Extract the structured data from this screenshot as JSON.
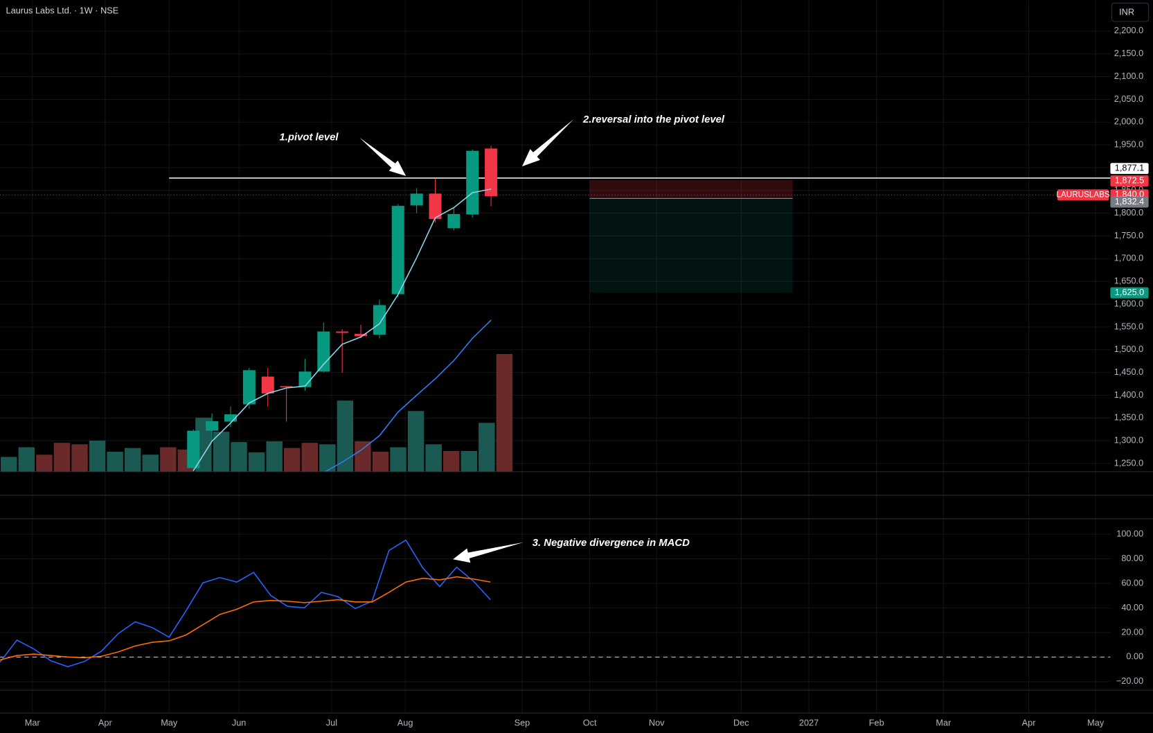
{
  "header": {
    "title": "Laurus Labs Ltd. · 1W · NSE",
    "currency": "INR"
  },
  "time_axis": {
    "labels": [
      "Mar",
      "Apr",
      "May",
      "Jun",
      "Jul",
      "Aug",
      "Sep",
      "Oct",
      "Nov",
      "Dec",
      "2027",
      "Feb",
      "Mar",
      "Apr",
      "May"
    ]
  },
  "chart_data": [
    {
      "type": "candlestick",
      "open": [
        1240,
        1322,
        1342,
        1380,
        1441,
        1420,
        1418,
        1452,
        1540,
        1535,
        1533,
        1622,
        1817,
        1843,
        1767,
        1797,
        1942
      ],
      "high": [
        1325,
        1360,
        1375,
        1460,
        1460,
        1420,
        1480,
        1560,
        1545,
        1555,
        1610,
        1820,
        1855,
        1875,
        1812,
        1940,
        1948
      ],
      "low": [
        1230,
        1300,
        1330,
        1370,
        1375,
        1342,
        1410,
        1450,
        1449,
        1525,
        1525,
        1615,
        1800,
        1780,
        1762,
        1790,
        1815
      ],
      "close": [
        1322,
        1343,
        1358,
        1455,
        1404,
        1418,
        1452,
        1540,
        1537,
        1530,
        1598,
        1816,
        1843,
        1787,
        1798,
        1937,
        1837
      ],
      "up_color": "#089981",
      "down_color": "#f23645",
      "overlays": [
        {
          "color": "#8fd3ea",
          "values": [
            1234,
            1299,
            1339,
            1383,
            1404,
            1416,
            1420,
            1468,
            1512,
            1528,
            1557,
            1621,
            1702,
            1790,
            1812,
            1845,
            1853
          ]
        },
        {
          "color": "#2f7bf0",
          "values": [
            null,
            null,
            null,
            null,
            null,
            null,
            null,
            1230,
            1253,
            1279,
            1311,
            1363,
            1400,
            1436,
            1476,
            1525,
            1565
          ]
        }
      ],
      "volume": {
        "values": [
          20,
          33,
          23,
          39,
          37,
          42,
          27,
          32,
          23,
          33,
          30,
          73,
          54,
          40,
          26,
          41,
          32,
          39,
          37,
          96,
          41,
          27,
          33,
          82,
          37,
          28,
          28,
          66,
          159
        ],
        "up": [
          true,
          true,
          false,
          false,
          false,
          true,
          true,
          true,
          true,
          false,
          false,
          true,
          true,
          true,
          true,
          true,
          false,
          false,
          true,
          true,
          false,
          false,
          true,
          true,
          true,
          false,
          true,
          true,
          false
        ],
        "up_color": "#1b5a53",
        "down_color": "#6a2a2a"
      },
      "ylim": [
        1232,
        2268
      ],
      "yticks": [
        {
          "value": 1250,
          "label": "1,250.0"
        },
        {
          "value": 1300,
          "label": "1,300.0"
        },
        {
          "value": 1350,
          "label": "1,350.0"
        },
        {
          "value": 1400,
          "label": "1,400.0"
        },
        {
          "value": 1450,
          "label": "1,450.0"
        },
        {
          "value": 1500,
          "label": "1,500.0"
        },
        {
          "value": 1550,
          "label": "1,550.0"
        },
        {
          "value": 1600,
          "label": "1,600.0"
        },
        {
          "value": 1650,
          "label": "1,650.0"
        },
        {
          "value": 1700,
          "label": "1,700.0"
        },
        {
          "value": 1750,
          "label": "1,750.0"
        },
        {
          "value": 1800,
          "label": "1,800.0"
        },
        {
          "value": 1850,
          "label": "1,850.0"
        },
        {
          "value": 1900,
          "label": "1,900.0"
        },
        {
          "value": 1950,
          "label": "1,950.0"
        },
        {
          "value": 2000,
          "label": "2,000.0"
        },
        {
          "value": 2050,
          "label": "2,050.0"
        },
        {
          "value": 2100,
          "label": "2,100.0"
        },
        {
          "value": 2150,
          "label": "2,150.0"
        },
        {
          "value": 2200,
          "label": "2,200.0"
        }
      ],
      "pivot": {
        "value": 1877.1,
        "label": "1,877.1"
      },
      "current": {
        "value": 1840,
        "label": "1,840.0",
        "symbol": "LAURUSLABS"
      },
      "position": {
        "stop": {
          "value": 1872.5,
          "label": "1,872.5"
        },
        "entry": {
          "value": 1832.4,
          "label": "1,832.4"
        },
        "target": {
          "value": 1625,
          "label": "1,625.0"
        }
      },
      "annotations": [
        "1.pivot level",
        "2.reversal into the pivot level"
      ]
    },
    {
      "type": "line",
      "series": [
        {
          "color": "#2962ff",
          "values": [
            -4.2,
            13.8,
            6.6,
            -3.0,
            -7.8,
            -3.6,
            4.8,
            19.2,
            28.7,
            24.0,
            16.2,
            37.7,
            60.5,
            64.7,
            61.1,
            68.9,
            50.3,
            41.3,
            40.1,
            52.7,
            49.1,
            39.5,
            45.5,
            86.8,
            95.2,
            72.5,
            57.5,
            73.1,
            61.7,
            46.7
          ]
        },
        {
          "color": "#ff6d00",
          "values": [
            -2.4,
            1.2,
            2.4,
            1.2,
            0,
            -0.6,
            0.6,
            4.2,
            9.0,
            12.0,
            13.2,
            18.0,
            26.3,
            34.7,
            38.9,
            44.9,
            46.1,
            45.5,
            44.3,
            45.5,
            46.7,
            44.9,
            44.9,
            52.7,
            61.1,
            64.1,
            62.9,
            65.3,
            63.5,
            61.1
          ]
        }
      ],
      "zero_line": 0,
      "ylim": [
        -27,
        112
      ],
      "yticks": [
        {
          "value": -20,
          "label": "−20.00"
        },
        {
          "value": 0,
          "label": "0.00"
        },
        {
          "value": 20,
          "label": "20.00"
        },
        {
          "value": 40,
          "label": "40.00"
        },
        {
          "value": 60,
          "label": "60.00"
        },
        {
          "value": 80,
          "label": "80.00"
        },
        {
          "value": 100,
          "label": "100.00"
        }
      ],
      "annotations": [
        "3. Negative divergence in MACD"
      ]
    }
  ]
}
